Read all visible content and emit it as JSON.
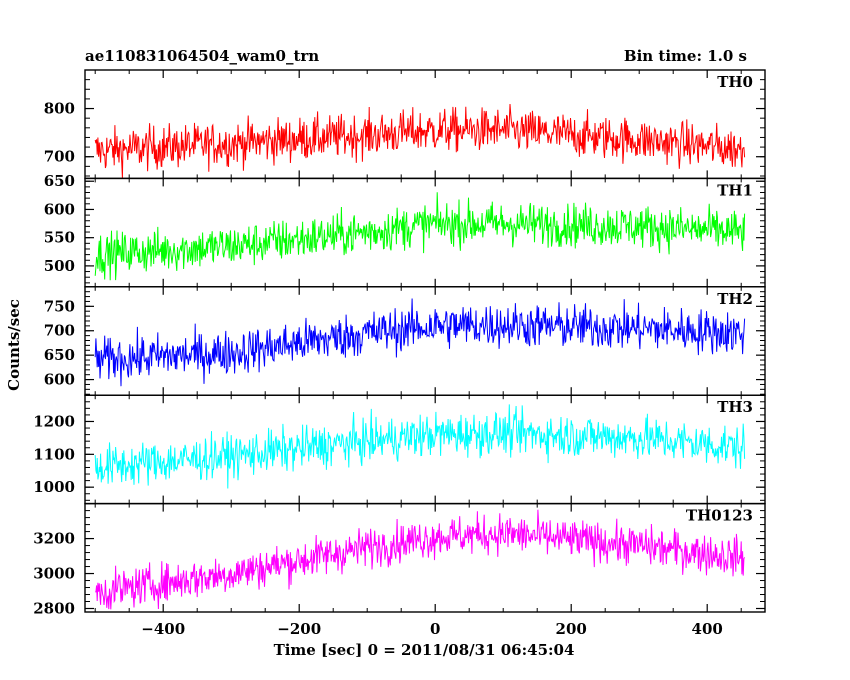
{
  "chart_data": {
    "type": "line",
    "title": "ae110831064504_wam0_trn",
    "subtitle": "Bin time: 1.0 s",
    "xlabel": "Time [sec] 0 = 2011/08/31 06:45:04",
    "ylabel": "Counts/sec",
    "xlim": [
      -515,
      485
    ],
    "x_range_data": [
      -500,
      455
    ],
    "x_ticks": [
      -400,
      -200,
      0,
      200,
      400
    ],
    "x_tick_labels": [
      "−400",
      "−200",
      "0",
      "200",
      "400"
    ],
    "grid": false,
    "panels": [
      {
        "name": "TH0",
        "color": "#ff0000",
        "ylim": [
          655,
          880
        ],
        "y_ticks": [
          700,
          800
        ],
        "y_tick_labels": [
          "700",
          "800"
        ],
        "trend": {
          "x": [
            -500,
            -300,
            -100,
            0,
            100,
            300,
            455
          ],
          "y": [
            712,
            728,
            745,
            755,
            755,
            735,
            715
          ]
        },
        "noise": 38
      },
      {
        "name": "TH1",
        "color": "#00ff00",
        "ylim": [
          463,
          655
        ],
        "y_ticks": [
          500,
          550,
          600,
          650
        ],
        "y_tick_labels": [
          "500",
          "550",
          "600",
          "650"
        ],
        "trend": {
          "x": [
            -500,
            -300,
            -100,
            0,
            100,
            300,
            455
          ],
          "y": [
            520,
            535,
            560,
            575,
            575,
            570,
            560
          ]
        },
        "noise": 32
      },
      {
        "name": "TH2",
        "color": "#0000ff",
        "ylim": [
          568,
          790
        ],
        "y_ticks": [
          600,
          650,
          700,
          750
        ],
        "y_tick_labels": [
          "600",
          "650",
          "700",
          "750"
        ],
        "trend": {
          "x": [
            -500,
            -300,
            -100,
            0,
            100,
            300,
            455
          ],
          "y": [
            640,
            655,
            695,
            710,
            712,
            705,
            695
          ]
        },
        "noise": 38
      },
      {
        "name": "TH3",
        "color": "#00ffff",
        "ylim": [
          950,
          1280
        ],
        "y_ticks": [
          1000,
          1100,
          1200
        ],
        "y_tick_labels": [
          "1000",
          "1100",
          "1200"
        ],
        "trend": {
          "x": [
            -500,
            -300,
            -100,
            0,
            100,
            300,
            455
          ],
          "y": [
            1060,
            1095,
            1140,
            1160,
            1165,
            1150,
            1120
          ]
        },
        "noise": 55
      },
      {
        "name": "TH0123",
        "color": "#ff00ff",
        "ylim": [
          2780,
          3400
        ],
        "y_ticks": [
          2800,
          3000,
          3200
        ],
        "y_tick_labels": [
          "2800",
          "3000",
          "3200"
        ],
        "trend": {
          "x": [
            -500,
            -300,
            -100,
            0,
            100,
            300,
            455
          ],
          "y": [
            2890,
            3000,
            3150,
            3210,
            3230,
            3160,
            3090
          ]
        },
        "noise": 95
      }
    ]
  }
}
